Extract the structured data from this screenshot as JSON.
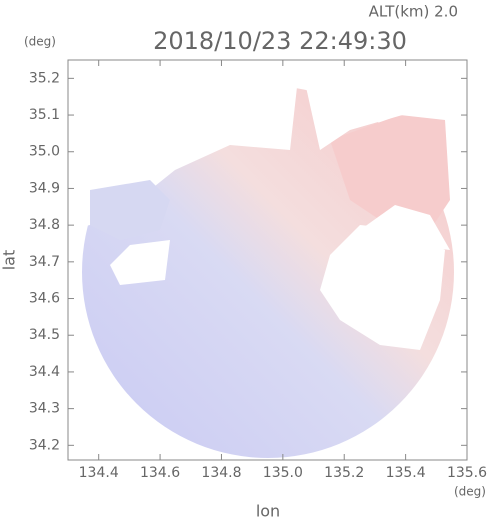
{
  "chart_data": {
    "type": "map",
    "title": "2018/10/23 22:49:30",
    "subtitle": "ALT(km)  2.0",
    "x_label": "lon",
    "y_label": "lat",
    "x_unit": "(deg)",
    "y_unit": "(deg)",
    "xlim": [
      134.3,
      135.6
    ],
    "xticks": [
      134.4,
      134.6,
      134.8,
      {
        "value": 135,
        "label": "135.0"
      },
      135.2,
      135.4,
      135.6
    ],
    "ylim": [
      34.16,
      35.25
    ],
    "yticks": [
      34.2,
      34.3,
      34.4,
      34.5,
      34.6,
      34.7,
      34.8,
      34.9,
      {
        "value": 35,
        "label": "35.0"
      },
      35.1,
      35.2
    ]
  }
}
